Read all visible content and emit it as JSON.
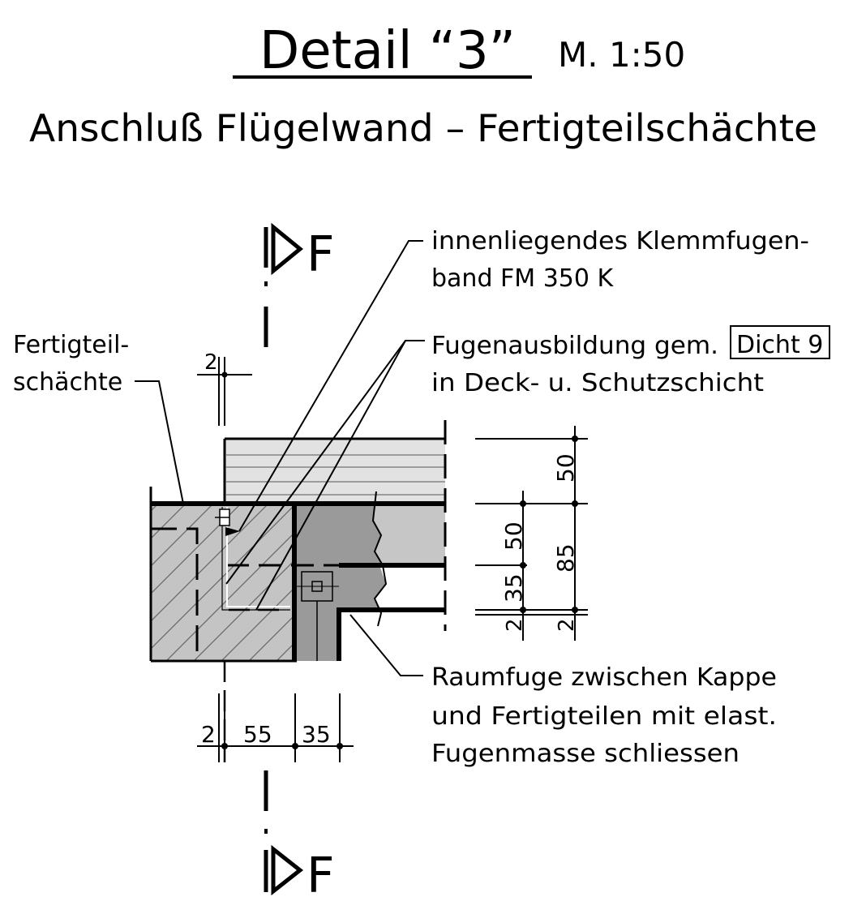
{
  "title": {
    "main": "Detail “3”",
    "scale": "M. 1:50",
    "subtitle": "Anschluß Flügelwand – Fertigteilschächte"
  },
  "section_marker": {
    "letter": "F"
  },
  "labels": {
    "precast_line1": "Fertigteil-",
    "precast_line2": "schächte",
    "band_line1": "innenliegendes Klemmfugen-",
    "band_line2": "band FM 350 K",
    "joint_line1": "Fugenausbildung gem.",
    "joint_ref": "Dicht 9",
    "joint_line2": "in Deck- u. Schutzschicht",
    "gap_line1": "Raumfuge zwischen Kappe",
    "gap_line2": "und Fertigteilen mit elast.",
    "gap_line3": "Fugenmasse schliessen"
  },
  "dimensions": {
    "top_left": "2",
    "right_top": "50",
    "right_mid": "85",
    "right_bottom": "2",
    "mid_upper": "50",
    "mid_lower": "35",
    "mid_bottom": "2",
    "bottom_a": "2",
    "bottom_b": "55",
    "bottom_c": "35"
  },
  "colors": {
    "line": "#000000",
    "precast_fill": "#c4c4c4",
    "hatch": "#6a6a6a",
    "overlay_fill": "#e2e2e2",
    "wall_fill": "#9a9a9a",
    "wall_light_fill": "#c6c6c6"
  }
}
